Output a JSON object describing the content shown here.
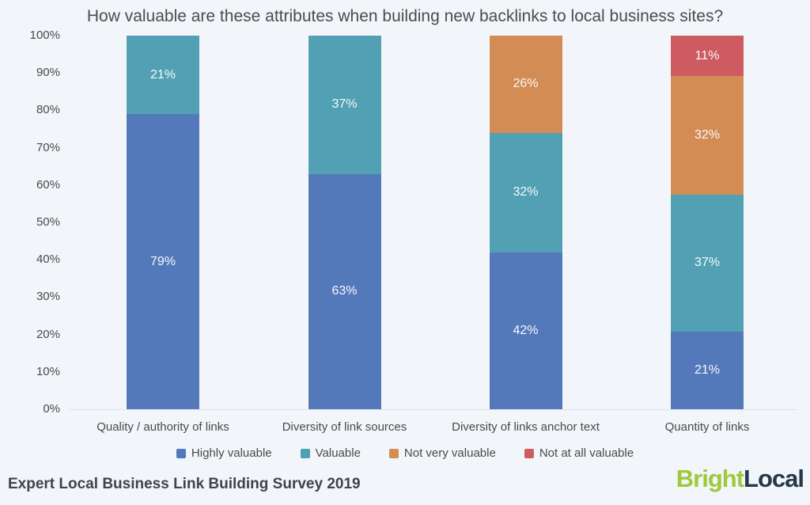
{
  "title": "How valuable are these attributes when building new backlinks to local business sites?",
  "footer": {
    "source": "Expert Local Business Link Building Survey 2019"
  },
  "logo": {
    "bright": "Bright",
    "local": "Local",
    "bright_color": "#9DC93B",
    "local_color": "#24384A"
  },
  "colors": {
    "background": "#F2F5F9",
    "title_text": "#4C4C4C",
    "axis_text": "#4A4A4A",
    "axis_line": "#DFE4E9",
    "segment_label_text": "#F7F9FA"
  },
  "chart_data": {
    "type": "bar",
    "stacked": true,
    "title": "How valuable are these attributes when building new backlinks to local business sites?",
    "categories": [
      "Quality / authority of links",
      "Diversity of link sources",
      "Diversity of links anchor text",
      "Quantity of links"
    ],
    "series": [
      {
        "name": "Highly valuable",
        "color": "#5379BB",
        "values": [
          79,
          63,
          42,
          21
        ]
      },
      {
        "name": "Valuable",
        "color": "#52A0B4",
        "values": [
          21,
          37,
          32,
          37
        ]
      },
      {
        "name": "Not very valuable",
        "color": "#D48C55",
        "values": [
          0,
          0,
          26,
          32
        ]
      },
      {
        "name": "Not at all valuable",
        "color": "#CE5B61",
        "values": [
          0,
          0,
          0,
          11
        ]
      }
    ],
    "value_suffix": "%",
    "yticks": [
      "0%",
      "10%",
      "20%",
      "30%",
      "40%",
      "50%",
      "60%",
      "70%",
      "80%",
      "90%",
      "100%"
    ],
    "ylim": [
      0,
      100
    ],
    "xlabel": "",
    "ylabel": "",
    "grid": false,
    "legend_position": "bottom",
    "data_labels": "inside segments, hidden when value is 0"
  }
}
